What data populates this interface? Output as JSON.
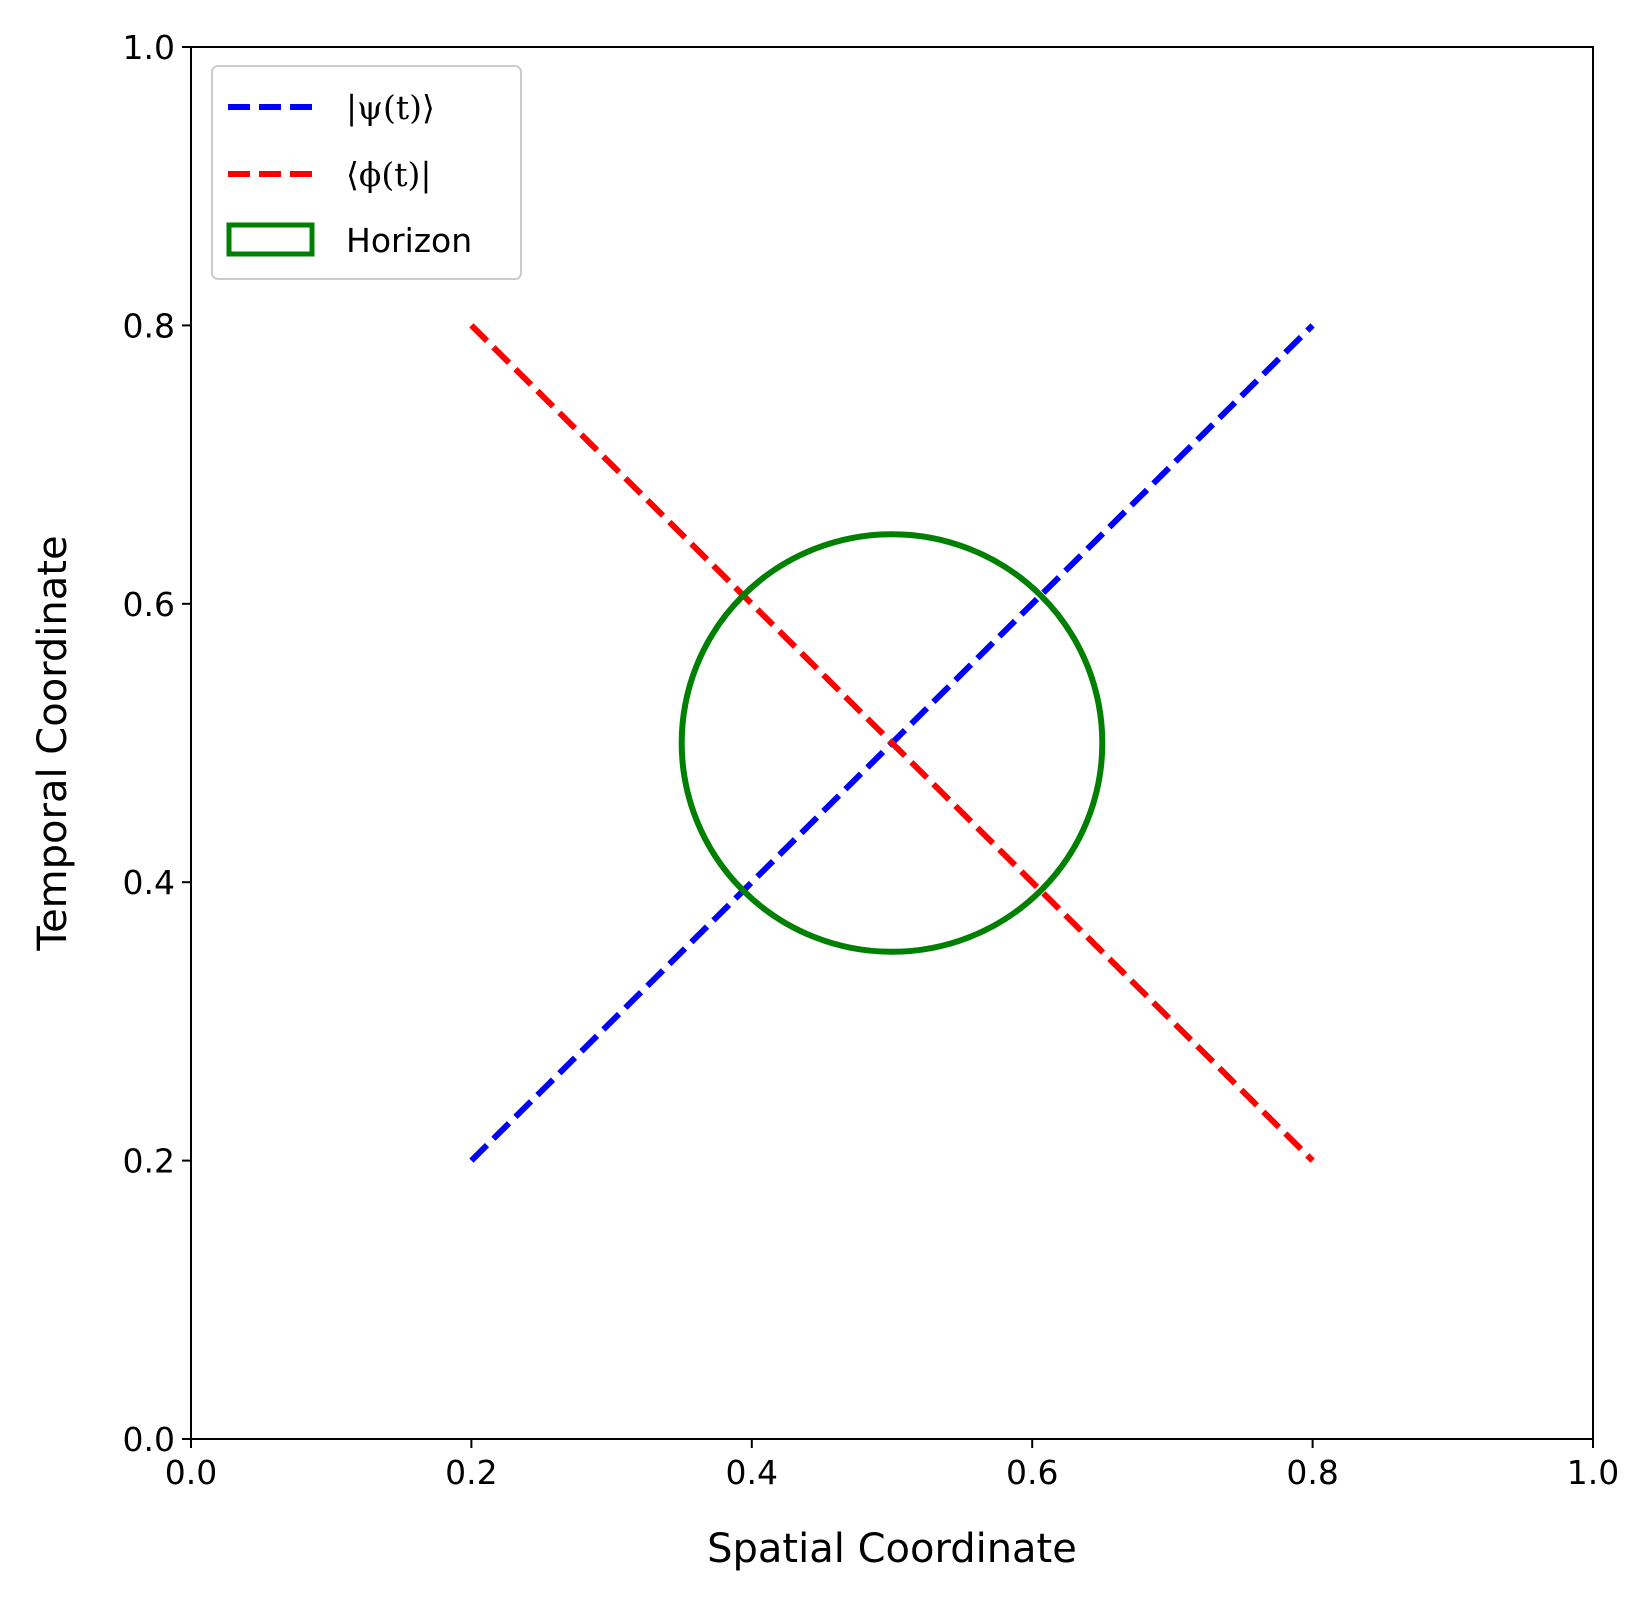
{
  "chart_data": {
    "type": "line",
    "title": "",
    "xlabel": "Spatial Coordinate",
    "ylabel": "Temporal Coordinate",
    "xlim": [
      0.0,
      1.0
    ],
    "ylim": [
      0.0,
      1.0
    ],
    "xticks": [
      "0.0",
      "0.2",
      "0.4",
      "0.6",
      "0.8",
      "1.0"
    ],
    "yticks": [
      "0.0",
      "0.2",
      "0.4",
      "0.6",
      "0.8",
      "1.0"
    ],
    "grid": false,
    "legend_position": "top-left",
    "series": [
      {
        "name": "|ψ(t)⟩",
        "style": "dashed",
        "color": "#0000ff",
        "x": [
          0.2,
          0.8
        ],
        "y": [
          0.2,
          0.8
        ]
      },
      {
        "name": "⟨ϕ(t)|",
        "style": "dashed",
        "color": "#ff0000",
        "x": [
          0.2,
          0.8
        ],
        "y": [
          0.8,
          0.2
        ]
      }
    ],
    "shapes": [
      {
        "name": "Horizon",
        "type": "circle",
        "center": [
          0.5,
          0.5
        ],
        "radius": 0.15,
        "color": "#008000"
      }
    ]
  }
}
